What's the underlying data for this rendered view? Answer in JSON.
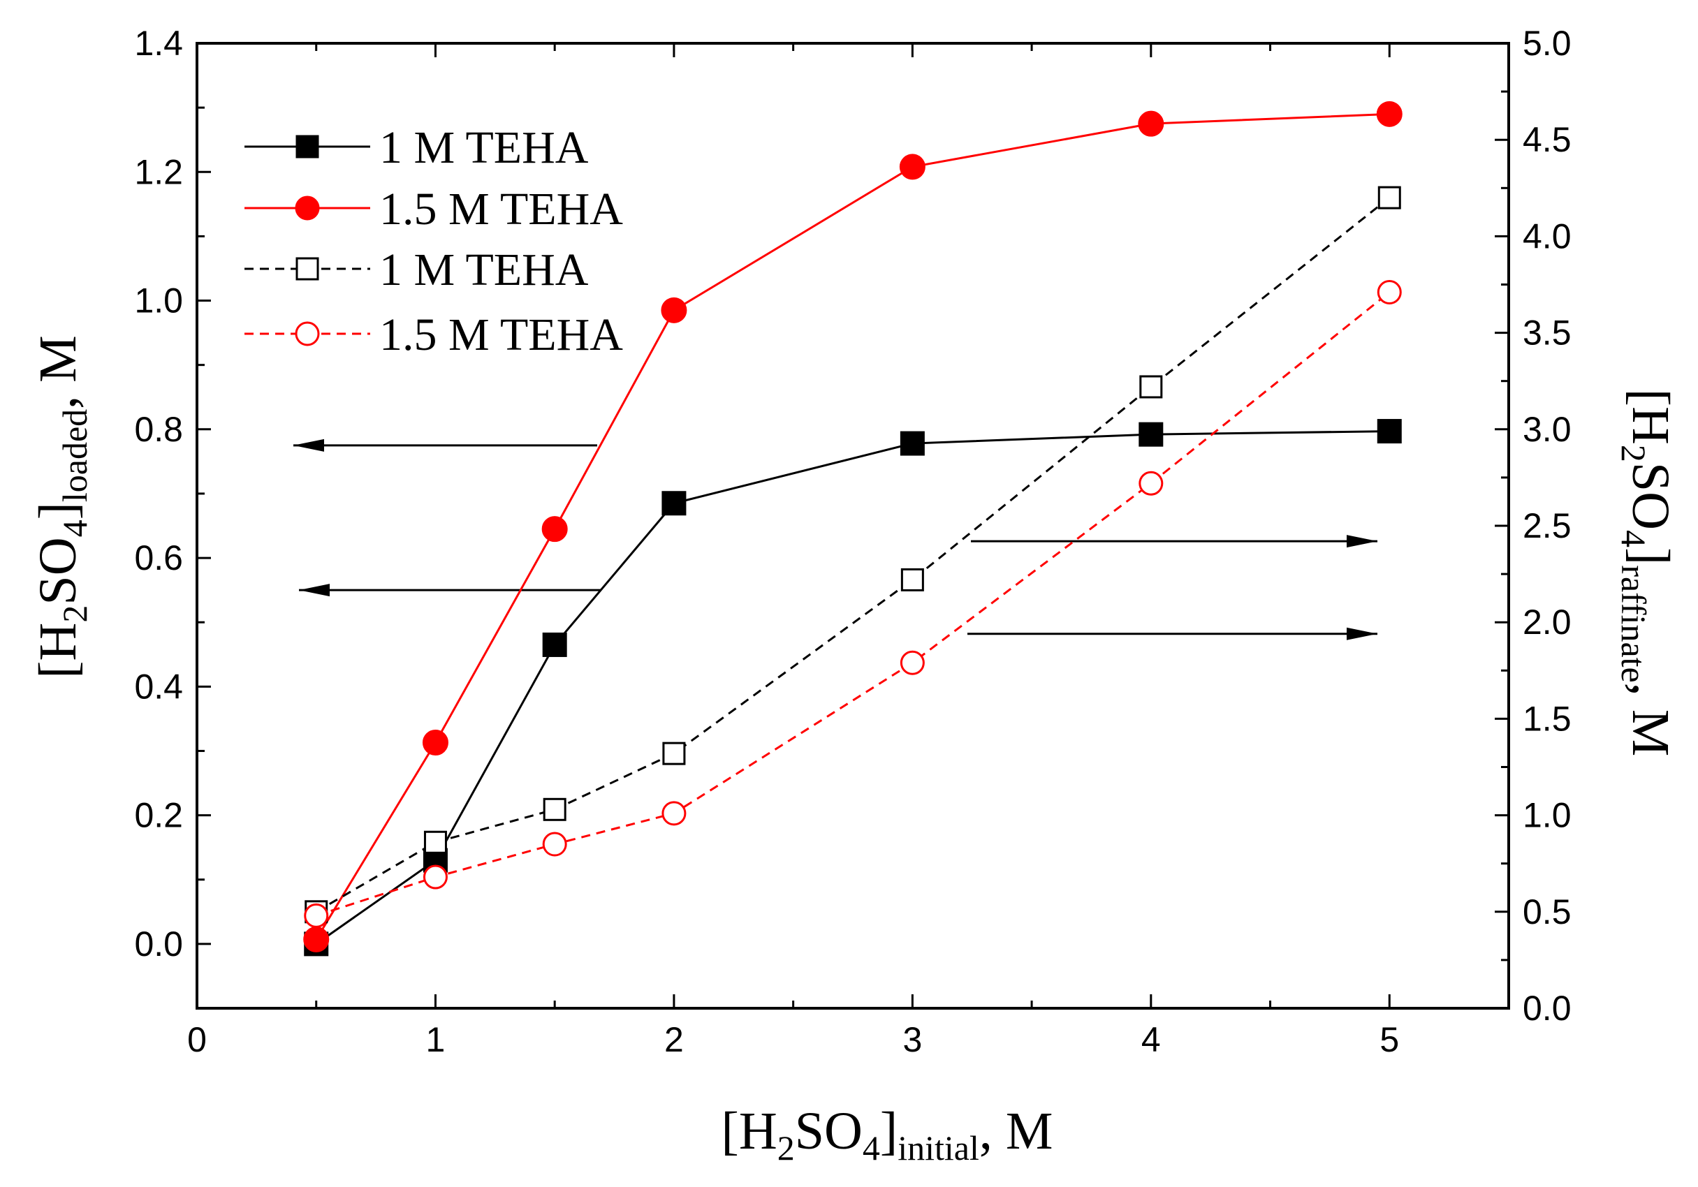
{
  "chart_data": {
    "type": "line",
    "x": [
      0.5,
      1,
      1.5,
      2,
      3,
      4,
      5
    ],
    "x_ticks": [
      "0",
      "1",
      "2",
      "3",
      "4",
      "5"
    ],
    "xlim": [
      0,
      5.5
    ],
    "y_left_ticks": [
      "0.0",
      "0.2",
      "0.4",
      "0.6",
      "0.8",
      "1.0",
      "1.2",
      "1.4"
    ],
    "ylim_left": [
      -0.1,
      1.4
    ],
    "y_right_ticks": [
      "0.0",
      "0.5",
      "1.0",
      "1.5",
      "2.0",
      "2.5",
      "3.0",
      "3.5",
      "4.0",
      "4.5",
      "5.0"
    ],
    "ylim_right": [
      0,
      5
    ],
    "xlabel": {
      "open": "[H",
      "sub1": "2",
      "mid": "SO",
      "sub2": "4",
      "close": "]",
      "sub3": "initial",
      "unit": ", M"
    },
    "ylabel_left": {
      "open": "[H",
      "sub1": "2",
      "mid": "SO",
      "sub2": "4",
      "close": "]",
      "sub3": "loaded",
      "unit": ", M"
    },
    "ylabel_right": {
      "open": "[H",
      "sub1": "2",
      "mid": "SO",
      "sub2": "4",
      "close": "]",
      "sub3": "raffinate",
      "unit": ", M"
    },
    "series": [
      {
        "name": "1 M TEHA",
        "axis": "left",
        "color": "#000000",
        "style": "solid",
        "marker": "square",
        "filled": true,
        "values": [
          0.0,
          0.13,
          0.465,
          0.685,
          0.778,
          0.792,
          0.797
        ]
      },
      {
        "name": "1.5 M TEHA",
        "axis": "left",
        "color": "#ff0000",
        "style": "solid",
        "marker": "circle",
        "filled": true,
        "values": [
          0.007,
          0.313,
          0.645,
          0.985,
          1.208,
          1.275,
          1.29
        ]
      },
      {
        "name": "1 M TEHA",
        "axis": "right",
        "color": "#000000",
        "style": "dashed",
        "marker": "square",
        "filled": false,
        "values": [
          0.5,
          0.86,
          1.03,
          1.32,
          2.22,
          3.22,
          4.2
        ]
      },
      {
        "name": "1.5 M TEHA",
        "axis": "right",
        "color": "#ff0000",
        "style": "dashed",
        "marker": "circle",
        "filled": false,
        "values": [
          0.48,
          0.68,
          0.85,
          1.01,
          1.79,
          2.72,
          3.71
        ]
      }
    ],
    "annotations": [
      {
        "type": "arrow",
        "direction": "left",
        "target_axis": "left",
        "level": 0.775
      },
      {
        "type": "arrow",
        "direction": "left",
        "target_axis": "left",
        "level": 0.55
      },
      {
        "type": "arrow",
        "direction": "right",
        "target_axis": "right",
        "level": 2.42
      },
      {
        "type": "arrow",
        "direction": "right",
        "target_axis": "right",
        "level": 1.94
      }
    ],
    "legend_position": "top-left",
    "grid": false
  }
}
